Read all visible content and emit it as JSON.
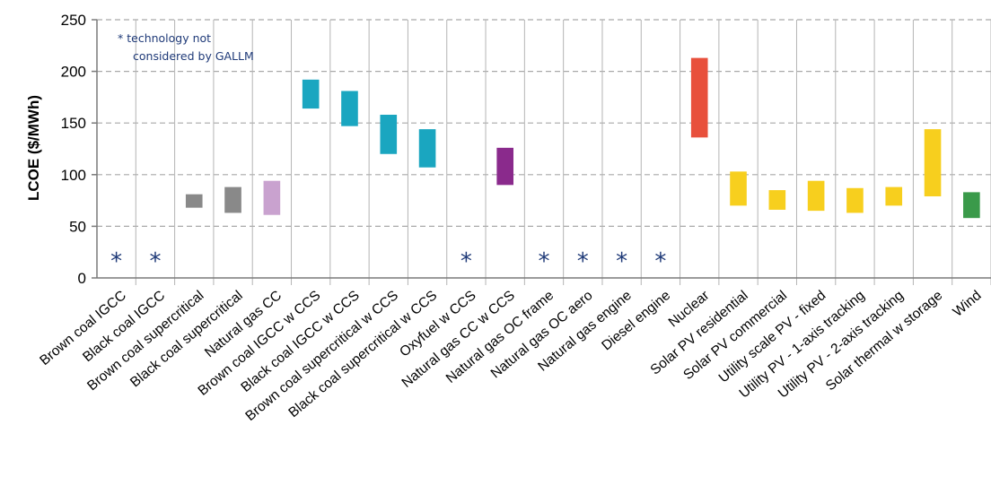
{
  "chart_data": {
    "type": "floating-bar",
    "ylabel": "LCOE ($/MWh)",
    "ylim": [
      0,
      250
    ],
    "yticks": [
      0,
      50,
      100,
      150,
      200,
      250
    ],
    "grid": true,
    "note_lines": [
      "* technology not",
      "considered by GALLM"
    ],
    "not_considered_marker": "*",
    "categories": [
      "Brown coal IGCC",
      "Black coal IGCC",
      "Brown coal supercritical",
      "Black coal supercritical",
      "Natural gas CC",
      "Brown coal IGCC w CCS",
      "Black coal IGCC w CCS",
      "Brown coal supercritical w CCS",
      "Black coal supercritical w CCS",
      "Oxyfuel w CCS",
      "Natural gas CC w CCS",
      "Natural gas OC frame",
      "Natural gas OC aero",
      "Natural gas engine",
      "Diesel engine",
      "Nuclear",
      "Solar PV residential",
      "Solar PV commercial",
      "Utility scale PV - fixed",
      "Utility PV - 1-axis tracking",
      "Utility PV - 2-axis tracking",
      "Solar thermal w storage",
      "Wind"
    ],
    "ranges": [
      null,
      null,
      [
        68,
        81
      ],
      [
        63,
        88
      ],
      [
        61,
        94
      ],
      [
        164,
        192
      ],
      [
        147,
        181
      ],
      [
        120,
        158
      ],
      [
        107,
        144
      ],
      null,
      [
        90,
        126
      ],
      null,
      null,
      null,
      null,
      [
        136,
        213
      ],
      [
        70,
        103
      ],
      [
        66,
        85
      ],
      [
        65,
        94
      ],
      [
        63,
        87
      ],
      [
        70,
        88
      ],
      [
        79,
        144
      ],
      [
        58,
        83
      ]
    ],
    "colors": [
      null,
      null,
      "#898989",
      "#898989",
      "#c9a2cf",
      "#1aa6c0",
      "#1aa6c0",
      "#1aa6c0",
      "#1aa6c0",
      null,
      "#8a2a8c",
      null,
      null,
      null,
      null,
      "#e8503c",
      "#f7cf1e",
      "#f7cf1e",
      "#f7cf1e",
      "#f7cf1e",
      "#f7cf1e",
      "#f7cf1e",
      "#3a9a4a"
    ]
  }
}
